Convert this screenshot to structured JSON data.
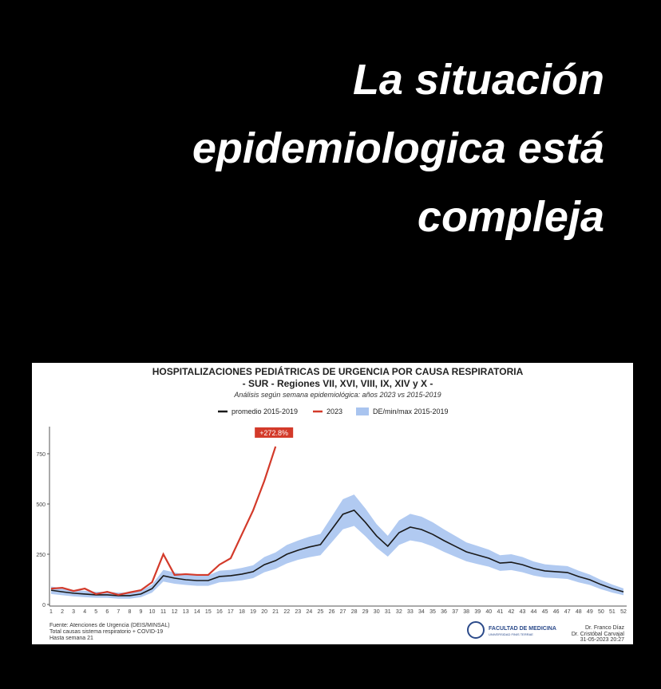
{
  "headline": [
    "La situación",
    "epidemiologica está",
    "compleja"
  ],
  "chart_data": {
    "type": "line",
    "title": "HOSPITALIZACIONES PEDIÁTRICAS DE URGENCIA POR CAUSA RESPIRATORIA",
    "subtitle": "- SUR - Regiones VII, XVI, VIII, IX, XIV y X -",
    "note": "Análisis según semana epidemiológica: años 2023 vs 2015-2019",
    "categories": [
      1,
      2,
      3,
      4,
      5,
      6,
      7,
      8,
      9,
      10,
      11,
      12,
      13,
      14,
      15,
      16,
      17,
      18,
      19,
      20,
      21,
      22,
      23,
      24,
      25,
      26,
      27,
      28,
      29,
      30,
      31,
      32,
      33,
      34,
      35,
      36,
      37,
      38,
      39,
      40,
      41,
      42,
      43,
      44,
      45,
      46,
      47,
      48,
      49,
      50,
      51,
      52
    ],
    "ylim": [
      0,
      880
    ],
    "yticks": [
      0,
      250,
      500,
      750
    ],
    "series": [
      {
        "name": "promedio 2015-2019",
        "color": "#1a1a1a",
        "values": [
          71,
          63,
          56,
          52,
          48,
          48,
          44,
          44,
          52,
          79,
          143,
          131,
          123,
          119,
          119,
          139,
          143,
          151,
          163,
          198,
          218,
          250,
          270,
          286,
          298,
          373,
          449,
          469,
          409,
          341,
          290,
          357,
          385,
          373,
          349,
          318,
          290,
          262,
          246,
          230,
          206,
          210,
          198,
          179,
          167,
          163,
          159,
          139,
          123,
          99,
          79,
          63
        ]
      },
      {
        "name": "2023",
        "color": "#d33a2a",
        "values": [
          79,
          83,
          67,
          79,
          52,
          63,
          48,
          60,
          71,
          111,
          250,
          147,
          151,
          147,
          147,
          198,
          230,
          349,
          468,
          615,
          786,
          null,
          null,
          null,
          null,
          null,
          null,
          null,
          null,
          null,
          null,
          null,
          null,
          null,
          null,
          null,
          null,
          null,
          null,
          null,
          null,
          null,
          null,
          null,
          null,
          null,
          null,
          null,
          null,
          null,
          null,
          null
        ]
      }
    ],
    "band": {
      "name": "DE/min/max 2015-2019",
      "color": "#a9c4ef",
      "upper": [
        90,
        80,
        72,
        68,
        63,
        63,
        59,
        59,
        68,
        99,
        172,
        159,
        149,
        145,
        145,
        168,
        172,
        182,
        195,
        236,
        259,
        296,
        318,
        337,
        351,
        437,
        524,
        547,
        478,
        400,
        342,
        418,
        451,
        437,
        409,
        374,
        342,
        309,
        291,
        273,
        245,
        250,
        236,
        214,
        200,
        195,
        191,
        168,
        149,
        122,
        99,
        80
      ],
      "lower": [
        52,
        46,
        40,
        36,
        33,
        33,
        29,
        29,
        36,
        59,
        114,
        103,
        97,
        93,
        93,
        110,
        114,
        120,
        131,
        160,
        177,
        204,
        222,
        235,
        245,
        309,
        374,
        391,
        340,
        282,
        238,
        296,
        319,
        309,
        289,
        262,
        238,
        215,
        201,
        188,
        167,
        171,
        160,
        144,
        134,
        131,
        127,
        110,
        97,
        76,
        59,
        46
      ]
    },
    "annotation": "+272.8%"
  },
  "footer": {
    "source": [
      "Fuente: Atenciones de Urgencia (DEIS/MINSAL)",
      "Total causas sistema respiratorio + COVID-19",
      "Hasta semana 21"
    ],
    "logo": [
      "FACULTAD DE MEDICINA",
      "UNIVERSIDAD FINIS TERRAE"
    ],
    "authors": [
      "Dr. Franco Díaz",
      "Dr. Cristóbal Carvajal",
      "31-05-2023 20:27"
    ]
  }
}
